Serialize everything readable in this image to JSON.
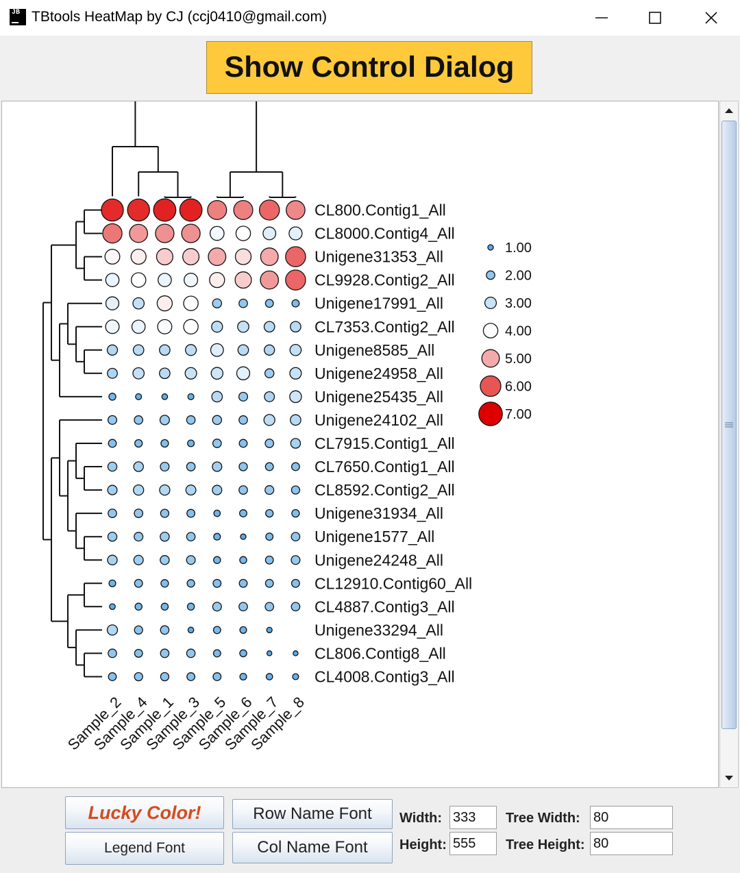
{
  "window": {
    "app_icon_text": "JB",
    "title": "TBtools HeatMap by CJ (ccj0410@gmail.com)",
    "control_button": "Show Control Dialog"
  },
  "toolbar": {
    "lucky_color": "Lucky Color!",
    "legend_font": "Legend Font",
    "row_name_font": "Row Name Font",
    "col_name_font": "Col Name Font",
    "width_label": "Width:",
    "width_value": "333",
    "height_label": "Height:",
    "height_value": "555",
    "tree_width_label": "Tree Width:",
    "tree_width_value": "80",
    "tree_height_label": "Tree Height:",
    "tree_height_value": "80"
  },
  "colors": {
    "low": "#5aaae6",
    "mid": "#ffffff",
    "high": "#dd0000",
    "control_button": "#ffc93c",
    "lucky_color_text": "#d64a1c"
  },
  "chart_data": {
    "type": "heatmap",
    "encoding": "circle size and color by value",
    "columns": [
      "Sample_2",
      "Sample_4",
      "Sample_1",
      "Sample_3",
      "Sample_5",
      "Sample_6",
      "Sample_7",
      "Sample_8"
    ],
    "rows": [
      "CL800.Contig1_All",
      "CL8000.Contig4_All",
      "Unigene31353_All",
      "CL9928.Contig2_All",
      "Unigene17991_All",
      "CL7353.Contig2_All",
      "Unigene8585_All",
      "Unigene24958_All",
      "Unigene25435_All",
      "Unigene24102_All",
      "CL7915.Contig1_All",
      "CL7650.Contig1_All",
      "CL8592.Contig2_All",
      "Unigene31934_All",
      "Unigene1577_All",
      "Unigene24248_All",
      "CL12910.Contig60_All",
      "CL4887.Contig3_All",
      "Unigene33294_All",
      "CL806.Contig8_All",
      "CL4008.Contig3_All"
    ],
    "values": [
      [
        6.5,
        6.5,
        6.6,
        6.6,
        5.5,
        5.5,
        5.8,
        5.4
      ],
      [
        5.6,
        5.2,
        5.3,
        5.3,
        3.8,
        4.0,
        3.4,
        3.5
      ],
      [
        4.1,
        4.2,
        4.6,
        4.6,
        5.0,
        4.4,
        5.0,
        5.8
      ],
      [
        3.6,
        4.0,
        3.6,
        3.7,
        4.2,
        4.6,
        5.2,
        5.8
      ],
      [
        3.5,
        2.9,
        4.2,
        4.0,
        2.2,
        2.0,
        1.8,
        1.6
      ],
      [
        3.7,
        3.6,
        3.9,
        4.0,
        2.8,
        2.9,
        2.7,
        2.7
      ],
      [
        2.6,
        2.7,
        2.7,
        2.8,
        3.4,
        2.7,
        2.6,
        2.9
      ],
      [
        2.5,
        2.9,
        2.7,
        3.0,
        3.1,
        3.5,
        2.2,
        3.0
      ],
      [
        1.5,
        1.2,
        1.1,
        1.2,
        2.7,
        2.1,
        2.5,
        3.1
      ],
      [
        2.1,
        2.0,
        2.3,
        2.0,
        2.2,
        2.0,
        2.8,
        2.7
      ],
      [
        1.8,
        1.7,
        1.7,
        1.4,
        2.0,
        1.8,
        2.0,
        2.4
      ],
      [
        2.2,
        2.4,
        2.1,
        2.0,
        2.3,
        1.9,
        1.8,
        1.8
      ],
      [
        2.3,
        2.6,
        2.6,
        2.5,
        2.3,
        2.0,
        2.1,
        1.9
      ],
      [
        2.0,
        2.0,
        1.9,
        1.8,
        1.3,
        1.6,
        1.7,
        1.7
      ],
      [
        2.2,
        2.1,
        2.2,
        2.0,
        1.4,
        1.0,
        1.6,
        2.0
      ],
      [
        2.4,
        2.3,
        2.2,
        2.1,
        1.5,
        1.5,
        1.8,
        2.1
      ],
      [
        1.4,
        1.8,
        1.7,
        1.7,
        1.8,
        1.8,
        1.8,
        1.8
      ],
      [
        1.1,
        1.5,
        1.5,
        1.5,
        2.1,
        2.0,
        2.0,
        2.0
      ],
      [
        2.6,
        1.9,
        2.0,
        1.1,
        1.6,
        1.4,
        1.0,
        null
      ],
      [
        2.0,
        1.8,
        2.0,
        2.0,
        1.6,
        1.5,
        0.8,
        0.8
      ],
      [
        1.8,
        1.9,
        1.9,
        1.8,
        1.8,
        1.4,
        1.3,
        1.2
      ]
    ],
    "legend": {
      "labels": [
        "1.00",
        "2.00",
        "3.00",
        "4.00",
        "5.00",
        "6.00",
        "7.00"
      ],
      "values": [
        1,
        2,
        3,
        4,
        5,
        6,
        7
      ]
    },
    "value_range": [
      1,
      7
    ],
    "col_tree": [
      [
        [
          0,
          [
            1,
            [
              2,
              3
            ]
          ]
        ]
      ],
      [
        [
          4,
          5
        ],
        [
          6,
          7
        ]
      ]
    ],
    "row_tree": [
      [
        [
          [
            0,
            1
          ],
          [
            2,
            3
          ]
        ],
        [
          [
            4,
            [
              5,
              [
                6,
                7
              ]
            ]
          ],
          8
        ]
      ],
      [
        [
          9,
          [
            [
              10,
              [
                11,
                12
              ]
            ],
            [
              13,
              [
                14,
                15
              ]
            ]
          ]
        ],
        [
          [
            16,
            17
          ],
          [
            18,
            [
              19,
              20
            ]
          ]
        ]
      ]
    ]
  }
}
